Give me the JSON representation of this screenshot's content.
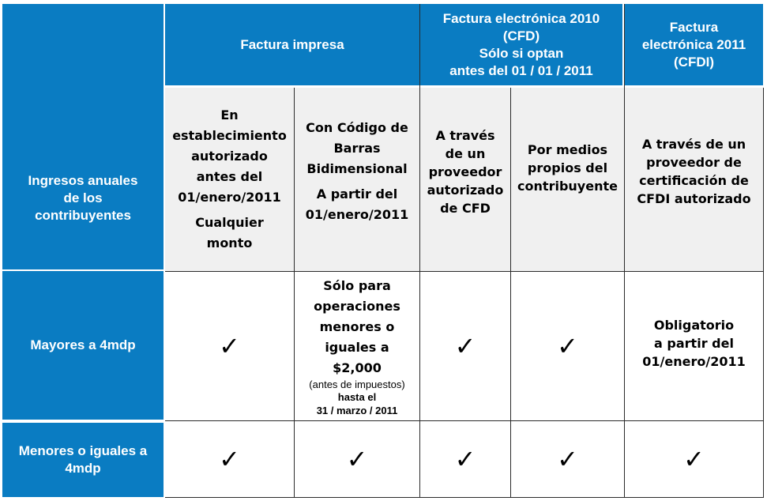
{
  "header": {
    "impresa": "Factura impresa",
    "cfd": [
      "Factura electrónica 2010",
      "(CFD)",
      "Sólo si optan",
      "antes del 01 / 01 / 2011"
    ],
    "cfdi": [
      "Factura",
      "electrónica 2011",
      "(CFDI)"
    ]
  },
  "subheader": {
    "row_label": [
      "Ingresos anuales",
      "de los",
      "contribuyentes"
    ],
    "col1": [
      "En",
      "establecimiento",
      "autorizado",
      "antes del",
      "01/enero/2011"
    ],
    "col1_extra": [
      "Cualquier",
      "monto"
    ],
    "col2": [
      "Con Código de",
      "Barras",
      "Bidimensional"
    ],
    "col2_extra": [
      "A partir del",
      "01/enero/2011"
    ],
    "col3": [
      "A través",
      "de un",
      "proveedor",
      "autorizado",
      "de CFD"
    ],
    "col4": [
      "Por medios",
      "propios del",
      "contribuyente"
    ],
    "col5": [
      "A través de un",
      "proveedor de",
      "certificación de",
      "CFDI autorizado"
    ]
  },
  "rows": {
    "mayores": {
      "label": "Mayores a 4mdp",
      "col2_main": [
        "Sólo para",
        "operaciones",
        "menores o",
        "iguales a",
        "$2,000"
      ],
      "col2_note": "(antes de impuestos)",
      "col2_until": [
        "hasta el",
        "31 / marzo / 2011"
      ],
      "col5": [
        "Obligatorio",
        "a partir del",
        "01/enero/2011"
      ]
    },
    "menores": {
      "label": [
        "Menores o iguales a",
        "4mdp"
      ]
    }
  },
  "check_mark": "✓",
  "colors": {
    "blue": "#0a7cc2",
    "gray": "#f0f0f0"
  }
}
